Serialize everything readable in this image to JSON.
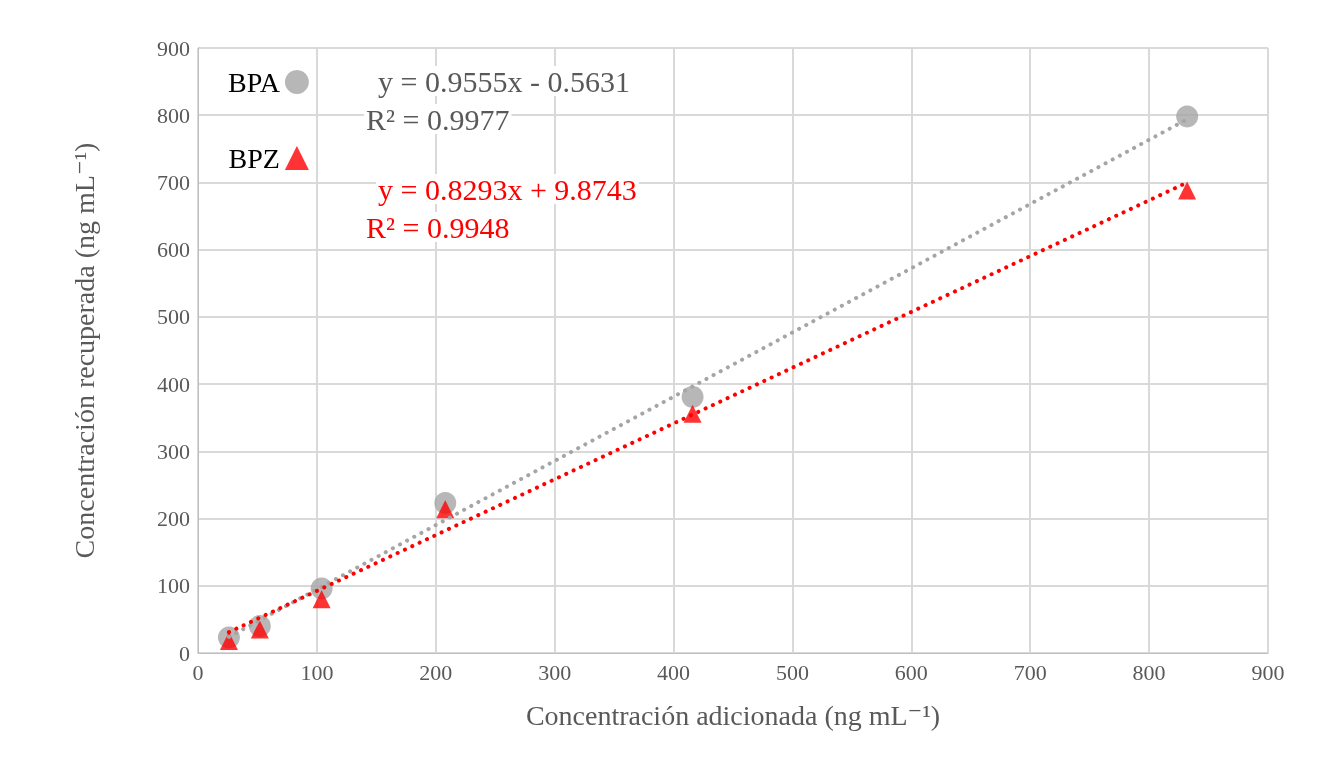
{
  "chart_data": {
    "type": "scatter",
    "xlabel": "Concentración adicionada (ng mL⁻¹)",
    "ylabel": "Concentración recuperada (ng mL⁻¹)",
    "xlim": [
      0,
      900
    ],
    "xticks": [
      0,
      100,
      200,
      300,
      400,
      500,
      600,
      700,
      800,
      900
    ],
    "ylim": [
      0,
      900
    ],
    "yticks": [
      0,
      100,
      200,
      300,
      400,
      500,
      600,
      700,
      800,
      900
    ],
    "grid": true,
    "legend": "top left",
    "series": [
      {
        "name": "BPA",
        "color": "#a5a5a5",
        "marker": "circle",
        "x": [
          26,
          52,
          104,
          208,
          416,
          832
        ],
        "values": [
          23,
          40,
          96,
          223,
          381,
          798
        ]
      },
      {
        "name": "BPZ",
        "color": "#ff0000",
        "marker": "triangle",
        "x": [
          26,
          52,
          104,
          208,
          416,
          832
        ],
        "values": [
          18,
          35,
          80,
          214,
          356,
          688
        ]
      },
      {
        "type": "line",
        "color": "#a5a5a5",
        "line_style": "dotted",
        "marker": "none",
        "x": [
          26,
          832
        ],
        "values": [
          24,
          794
        ]
      },
      {
        "type": "line",
        "color": "#ff0000",
        "line_style": "dotted",
        "marker": "none",
        "x": [
          26,
          832
        ],
        "values": [
          31,
          700
        ]
      }
    ],
    "annotations": [
      "y = 0.9555x - 0.5631",
      "R² = 0.9977",
      "y = 0.8293x + 9.8743",
      "R² = 0.9948"
    ]
  }
}
